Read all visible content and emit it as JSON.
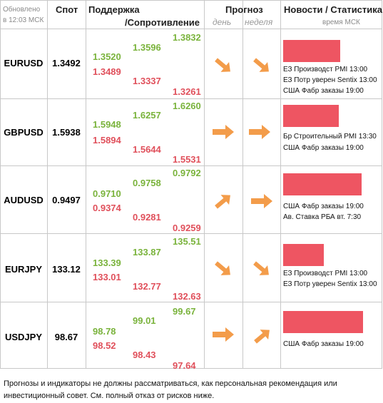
{
  "header": {
    "updated_line1": "Обновлено",
    "updated_line2": "в 12:03 МСК",
    "spot": "Спот",
    "support": "Поддержка",
    "resistance": "/Сопротивление",
    "forecast": "Прогноз",
    "day": "день",
    "week": "неделя",
    "news": "Новости / Статистика",
    "msk_time": "время МСК"
  },
  "rows": [
    {
      "pair": "EURUSD",
      "spot": "1.3492",
      "c1": [
        "1.3520",
        "1.3489"
      ],
      "c2": [
        "1.3596",
        "1.3337"
      ],
      "c3": [
        "1.3832",
        "1.3261"
      ],
      "day": "down-right",
      "week": "down-right",
      "bar": 0.73,
      "news": [
        "ЕЗ Производст PMI 13:00",
        "ЕЗ Потр уверен Sentix 13:00",
        "США Фабр заказы 19:00"
      ]
    },
    {
      "pair": "GBPUSD",
      "spot": "1.5938",
      "c1": [
        "1.5948",
        "1.5894"
      ],
      "c2": [
        "1.6257",
        "1.5644"
      ],
      "c3": [
        "1.6260",
        "1.5531"
      ],
      "day": "right",
      "week": "right",
      "bar": 0.71,
      "news": [
        "Бр Строительный PMI 13:30",
        "США Фабр заказы 19:00"
      ]
    },
    {
      "pair": "AUDUSD",
      "spot": "0.9497",
      "c1": [
        "0.9710",
        "0.9374"
      ],
      "c2": [
        "0.9758",
        "0.9281"
      ],
      "c3": [
        "0.9792",
        "0.9259"
      ],
      "day": "up-right",
      "week": "right",
      "bar": 0.93,
      "news": [
        "США Фабр заказы 19:00",
        "Ав. Ставка РБА вт. 7:30"
      ]
    },
    {
      "pair": "EURJPY",
      "spot": "133.12",
      "c1": [
        "133.39",
        "133.01"
      ],
      "c2": [
        "133.87",
        "132.77"
      ],
      "c3": [
        "135.51",
        "132.63"
      ],
      "day": "down-right",
      "week": "down-right",
      "bar": 0.49,
      "news": [
        "ЕЗ Производст PMI 13:00",
        "ЕЗ Потр уверен Sentix 13:00"
      ]
    },
    {
      "pair": "USDJPY",
      "spot": "98.67",
      "c1": [
        "98.78",
        "98.52"
      ],
      "c2": [
        "99.01",
        "98.43"
      ],
      "c3": [
        "99.67",
        "97.64"
      ],
      "day": "right",
      "week": "up-right",
      "bar": 0.94,
      "news": [
        "США Фабр заказы 19:00"
      ]
    }
  ],
  "colors": {
    "support": "#7ab33c",
    "resistance": "#e0505b",
    "arrow": "#f39c4a",
    "bar": "#ee5562"
  },
  "footer": "Прогнозы и индикаторы не должны рассматриваться, как персональная рекомендация или инвестиционный совет. См. полный отказ от рисков ниже."
}
